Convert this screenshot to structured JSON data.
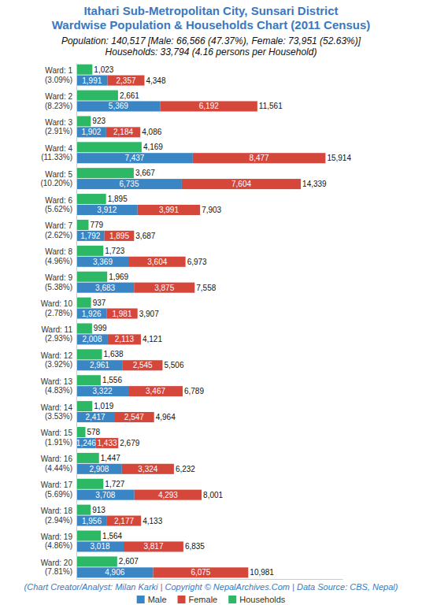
{
  "chart_data": {
    "type": "bar",
    "orientation": "horizontal",
    "stacked": true,
    "data_labels": true,
    "tick_labels": "y",
    "grid": false,
    "legend": "bottom",
    "title": [
      "Itahari Sub-Metropolitan City, Sunsari District",
      "Wardwise Population & Households Chart (2011 Census)"
    ],
    "subtitle": [
      "Population: 140,517 [Male: 66,566 (47.37%), Female: 73,951 (52.63%)]",
      "Households: 33,794 (4.16 persons per Household)"
    ],
    "annotations": [
      "(Chart Creator/Analyst: Milan Karki | Copyright © NepalArchives.Com | Data Source: CBS, Nepal)"
    ],
    "xlim": [
      0,
      17000
    ],
    "categories": [
      "Ward: 1\n(3.09%)",
      "Ward: 2\n(8.23%)",
      "Ward: 3\n(2.91%)",
      "Ward: 4\n(11.33%)",
      "Ward: 5\n(10.20%)",
      "Ward: 6\n(5.62%)",
      "Ward: 7\n(2.62%)",
      "Ward: 8\n(4.96%)",
      "Ward: 9\n(5.38%)",
      "Ward: 10\n(2.78%)",
      "Ward: 11\n(2.93%)",
      "Ward: 12\n(3.92%)",
      "Ward: 13\n(4.83%)",
      "Ward: 14\n(3.53%)",
      "Ward: 15\n(1.91%)",
      "Ward: 16\n(4.44%)",
      "Ward: 17\n(5.69%)",
      "Ward: 18\n(2.94%)",
      "Ward: 19\n(4.86%)",
      "Ward: 20\n(7.81%)"
    ],
    "series": [
      {
        "name": "Male",
        "type": "stacked_bar",
        "color": "#3a86c5",
        "values": [
          1991,
          5369,
          1902,
          7437,
          6735,
          3912,
          1792,
          3369,
          3683,
          1926,
          2008,
          2961,
          3322,
          2417,
          1246,
          2908,
          3708,
          1956,
          3018,
          4906
        ],
        "value_labels": [
          "1,991",
          "5,369",
          "1,902",
          "7,437",
          "6,735",
          "3,912",
          "1,792",
          "3,369",
          "3,683",
          "1,926",
          "2,008",
          "2,961",
          "3,322",
          "2,417",
          "1,246",
          "2,908",
          "3,708",
          "1,956",
          "3,018",
          "4,906"
        ]
      },
      {
        "name": "Female",
        "type": "stacked_bar",
        "color": "#d5473b",
        "values": [
          2357,
          6192,
          2184,
          8477,
          7604,
          3991,
          1895,
          3604,
          3875,
          1981,
          2113,
          2545,
          3467,
          2547,
          1433,
          3324,
          4293,
          2177,
          3817,
          6075
        ],
        "value_labels": [
          "2,357",
          "6,192",
          "2,184",
          "8,477",
          "7,604",
          "3,991",
          "1,895",
          "3,604",
          "3,875",
          "1,981",
          "2,113",
          "2,545",
          "3,467",
          "2,547",
          "1,433",
          "3,324",
          "4,293",
          "2,177",
          "3,817",
          "6,075"
        ]
      },
      {
        "name": "Households",
        "type": "bar",
        "color": "#2db865",
        "values": [
          1023,
          2661,
          923,
          4169,
          3667,
          1895,
          779,
          1723,
          1969,
          937,
          999,
          1638,
          1556,
          1019,
          578,
          1447,
          1727,
          913,
          1564,
          2607
        ],
        "value_labels": [
          "1,023",
          "2,661",
          "923",
          "4,169",
          "3,667",
          "1,895",
          "779",
          "1,723",
          "1,969",
          "937",
          "999",
          "1,638",
          "1,556",
          "1,019",
          "578",
          "1,447",
          "1,727",
          "913",
          "1,564",
          "2,607"
        ]
      }
    ],
    "totals": {
      "values": [
        4348,
        11561,
        4086,
        15914,
        14339,
        7903,
        3687,
        6973,
        7558,
        3907,
        4121,
        5506,
        6789,
        4964,
        2679,
        6232,
        8001,
        4133,
        6835,
        10981
      ],
      "value_labels": [
        "4,348",
        "11,561",
        "4,086",
        "15,914",
        "14,339",
        "7,903",
        "3,687",
        "6,973",
        "7,558",
        "3,907",
        "4,121",
        "5,506",
        "6,789",
        "4,964",
        "2,679",
        "6,232",
        "8,001",
        "4,133",
        "6,835",
        "10,981"
      ]
    }
  }
}
